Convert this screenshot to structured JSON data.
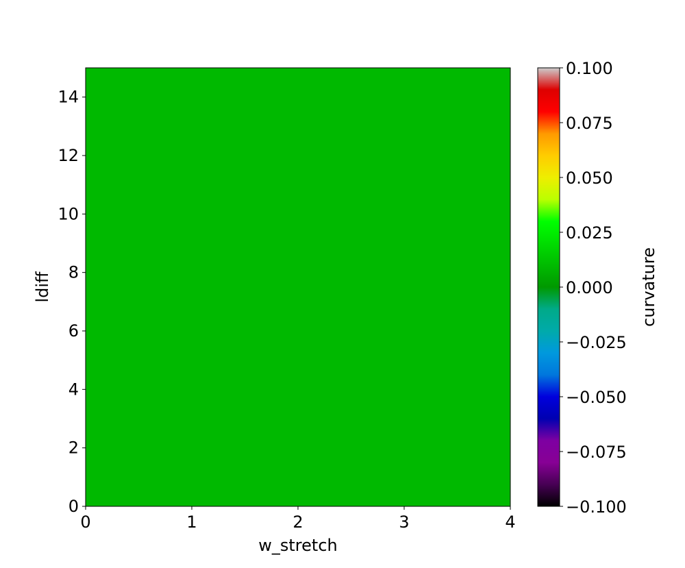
{
  "chart_data": {
    "type": "heatmap",
    "title": "",
    "xlabel": "w_stretch",
    "ylabel": "ldiff",
    "xlim": [
      0,
      4
    ],
    "ylim": [
      0,
      15
    ],
    "x_ticks": [
      "0",
      "1",
      "2",
      "3",
      "4"
    ],
    "y_ticks": [
      "0",
      "2",
      "4",
      "6",
      "8",
      "10",
      "12",
      "14"
    ],
    "values_description_value": 0.0,
    "field_value": 0.0,
    "field_color": "#00b900",
    "colorbar": {
      "label": "curvature",
      "vmin": -0.1,
      "vmax": 0.1,
      "ticks": [
        "−0.100",
        "−0.075",
        "−0.050",
        "−0.025",
        "0.000",
        "0.025",
        "0.050",
        "0.075",
        "0.100"
      ],
      "tick_values": [
        -0.1,
        -0.075,
        -0.05,
        -0.025,
        0.0,
        0.025,
        0.05,
        0.075,
        0.1
      ],
      "colormap": "nipy_spectral"
    },
    "grid": false
  }
}
